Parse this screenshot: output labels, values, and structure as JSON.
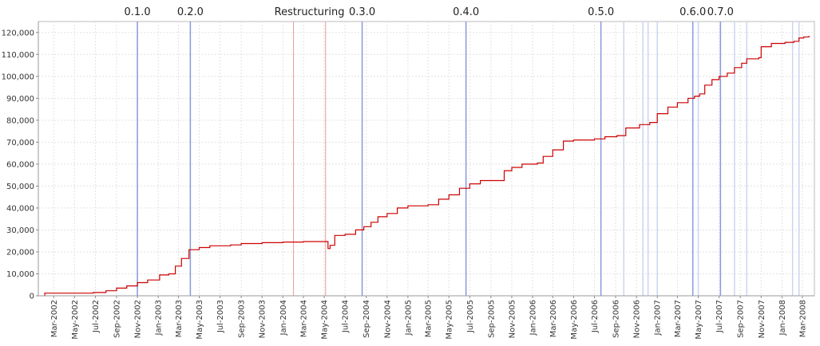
{
  "chart_data": {
    "type": "line",
    "title": "",
    "xlabel": "",
    "ylabel": "",
    "ylim": [
      0,
      125000
    ],
    "x_range": [
      "2002-01-15",
      "2008-04-05"
    ],
    "grid": true,
    "x_ticks": [
      "Mar-2002",
      "May-2002",
      "Jul-2002",
      "Sep-2002",
      "Nov-2002",
      "Jan-2003",
      "Mar-2003",
      "May-2003",
      "Jul-2003",
      "Sep-2003",
      "Nov-2003",
      "Jan-2004",
      "Mar-2004",
      "May-2004",
      "Jul-2004",
      "Sep-2004",
      "Nov-2004",
      "Jan-2005",
      "Mar-2005",
      "May-2005",
      "Jul-2005",
      "Sep-2005",
      "Nov-2005",
      "Jan-2006",
      "Mar-2006",
      "May-2006",
      "Jul-2006",
      "Sep-2006",
      "Nov-2006",
      "Jan-2007",
      "Mar-2007",
      "May-2007",
      "Jul-2007",
      "Sep-2007",
      "Nov-2007",
      "Jan-2008",
      "Mar-2008"
    ],
    "y_ticks": [
      "0",
      "10,000",
      "20,000",
      "30,000",
      "40,000",
      "50,000",
      "60,000",
      "70,000",
      "80,000",
      "90,000",
      "100,000",
      "110,000",
      "120,000"
    ],
    "line_color": "#cc0000",
    "release_color": "#8899dd",
    "marker_color": "#ee9999",
    "minor_marker_color": "#ccd4f2",
    "releases": [
      {
        "label": "0.1.0",
        "date": "2002-11-01"
      },
      {
        "label": "0.2.0",
        "date": "2003-04-05"
      },
      {
        "label": "0.3.0",
        "date": "2004-08-20"
      },
      {
        "label": "0.4.0",
        "date": "2005-06-20"
      },
      {
        "label": "0.5.0",
        "date": "2006-07-20"
      },
      {
        "label": "0.6.0",
        "date": "2007-04-15"
      },
      {
        "label": "0.7.0",
        "date": "2007-07-05"
      }
    ],
    "markers": [
      {
        "label": "Restructuring",
        "date": "2004-02-01"
      },
      {
        "label": "",
        "date": "2004-05-05"
      }
    ],
    "minor_releases": [
      "2006-09-25",
      "2006-11-20",
      "2006-12-05",
      "2007-01-01",
      "2007-05-01",
      "2007-08-15",
      "2007-09-20",
      "2008-02-01",
      "2008-02-20"
    ],
    "series": [
      {
        "points": [
          [
            "2002-02-01",
            0
          ],
          [
            "2002-02-03",
            1200
          ],
          [
            "2002-06-25",
            1500
          ],
          [
            "2002-08-01",
            2300
          ],
          [
            "2002-09-01",
            3500
          ],
          [
            "2002-10-01",
            4500
          ],
          [
            "2002-11-01",
            6000
          ],
          [
            "2002-12-01",
            7200
          ],
          [
            "2003-01-05",
            9500
          ],
          [
            "2003-02-01",
            10000
          ],
          [
            "2003-02-20",
            13500
          ],
          [
            "2003-03-10",
            17000
          ],
          [
            "2003-04-01",
            21000
          ],
          [
            "2003-05-01",
            22000
          ],
          [
            "2003-06-01",
            22800
          ],
          [
            "2003-08-01",
            23200
          ],
          [
            "2003-09-01",
            23800
          ],
          [
            "2003-11-01",
            24200
          ],
          [
            "2004-01-01",
            24500
          ],
          [
            "2004-03-01",
            24700
          ],
          [
            "2004-05-10",
            24700
          ],
          [
            "2004-05-12",
            21500
          ],
          [
            "2004-05-18",
            23000
          ],
          [
            "2004-06-01",
            27500
          ],
          [
            "2004-07-01",
            28000
          ],
          [
            "2004-08-01",
            30000
          ],
          [
            "2004-08-25",
            31500
          ],
          [
            "2004-09-15",
            33500
          ],
          [
            "2004-10-05",
            36000
          ],
          [
            "2004-11-01",
            37500
          ],
          [
            "2004-12-01",
            40000
          ],
          [
            "2005-01-01",
            41000
          ],
          [
            "2005-03-01",
            41500
          ],
          [
            "2005-04-01",
            44000
          ],
          [
            "2005-05-01",
            46000
          ],
          [
            "2005-06-01",
            49000
          ],
          [
            "2005-07-01",
            51000
          ],
          [
            "2005-08-01",
            52500
          ],
          [
            "2005-10-05",
            52500
          ],
          [
            "2005-10-10",
            57000
          ],
          [
            "2005-11-01",
            58500
          ],
          [
            "2005-12-01",
            60000
          ],
          [
            "2006-01-15",
            60500
          ],
          [
            "2006-02-01",
            63500
          ],
          [
            "2006-03-01",
            66500
          ],
          [
            "2006-04-01",
            70500
          ],
          [
            "2006-05-01",
            71000
          ],
          [
            "2006-07-01",
            71500
          ],
          [
            "2006-08-01",
            72500
          ],
          [
            "2006-09-05",
            73000
          ],
          [
            "2006-10-01",
            76500
          ],
          [
            "2006-11-10",
            78000
          ],
          [
            "2006-12-10",
            79000
          ],
          [
            "2007-01-01",
            83000
          ],
          [
            "2007-02-01",
            86000
          ],
          [
            "2007-03-01",
            88000
          ],
          [
            "2007-04-01",
            90000
          ],
          [
            "2007-04-20",
            91000
          ],
          [
            "2007-05-05",
            92000
          ],
          [
            "2007-05-20",
            96000
          ],
          [
            "2007-06-10",
            98500
          ],
          [
            "2007-07-01",
            100000
          ],
          [
            "2007-07-25",
            101500
          ],
          [
            "2007-08-15",
            104000
          ],
          [
            "2007-09-05",
            106000
          ],
          [
            "2007-09-20",
            108000
          ],
          [
            "2007-10-25",
            108500
          ],
          [
            "2007-11-01",
            113500
          ],
          [
            "2007-12-01",
            115000
          ],
          [
            "2008-01-10",
            115500
          ],
          [
            "2008-02-05",
            116000
          ],
          [
            "2008-02-20",
            117500
          ],
          [
            "2008-03-05",
            118000
          ],
          [
            "2008-03-20",
            118500
          ]
        ]
      }
    ]
  }
}
